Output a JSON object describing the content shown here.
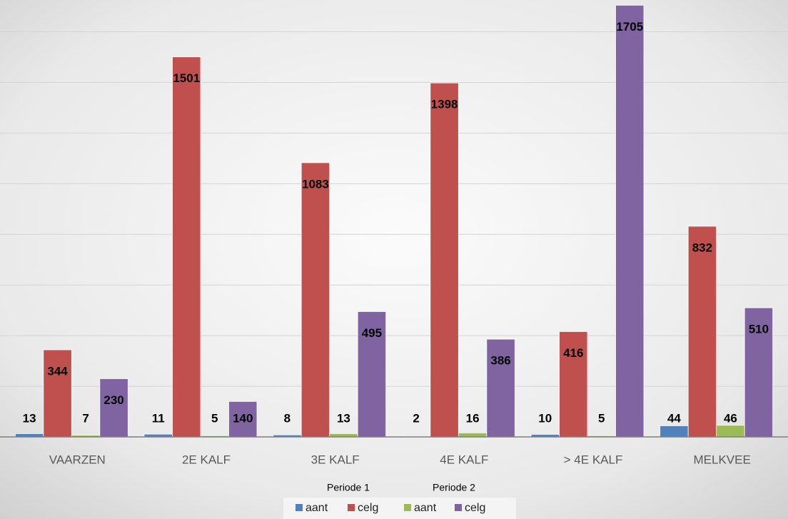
{
  "chart_data": {
    "type": "bar",
    "categories": [
      "VAARZEN",
      "2E KALF",
      "3E KALF",
      "4E KALF",
      "> 4E KALF",
      "MELKVEE"
    ],
    "series": [
      {
        "name": "aant",
        "color": "#4f81bd",
        "values": [
          13,
          11,
          8,
          2,
          10,
          44
        ]
      },
      {
        "name": "celg",
        "color": "#c0504d",
        "values": [
          344,
          1501,
          1083,
          1398,
          416,
          832
        ]
      },
      {
        "name": "aant",
        "color": "#9bbb59",
        "values": [
          7,
          5,
          13,
          16,
          5,
          46
        ]
      },
      {
        "name": "celg",
        "color": "#8064a2",
        "values": [
          230,
          140,
          495,
          386,
          1705,
          510
        ]
      }
    ],
    "legend_groups": [
      "Periode 1",
      "Periode 2"
    ],
    "ylim": [
      0,
      1720
    ],
    "yticks": [
      0,
      200,
      400,
      600,
      800,
      1000,
      1200,
      1400,
      1600
    ],
    "grid": true
  }
}
